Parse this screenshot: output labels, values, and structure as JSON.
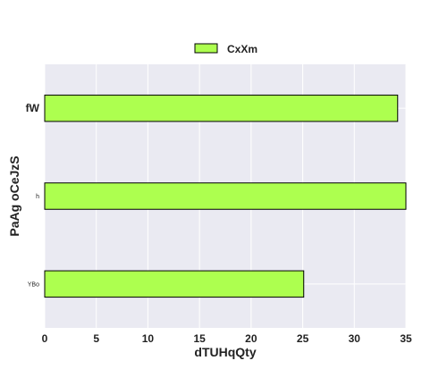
{
  "chart_data": {
    "type": "bar",
    "orientation": "horizontal",
    "categories": [
      "fW",
      "h",
      "YBo"
    ],
    "series": [
      {
        "name": "CxXm",
        "values": [
          34.2,
          35.2,
          25.1
        ],
        "color": "#adff4f"
      }
    ],
    "xlabel": "dTUHqQty",
    "ylabel": "PaAg oCeJzS",
    "xlim": [
      0,
      35
    ],
    "xticks": [
      0,
      5,
      10,
      15,
      20,
      25,
      30,
      35
    ],
    "grid": true,
    "legend_position": "top-center",
    "background_color": "#eaeaf2",
    "grid_color": "#ffffff",
    "bar_edge_color": "#000000"
  }
}
